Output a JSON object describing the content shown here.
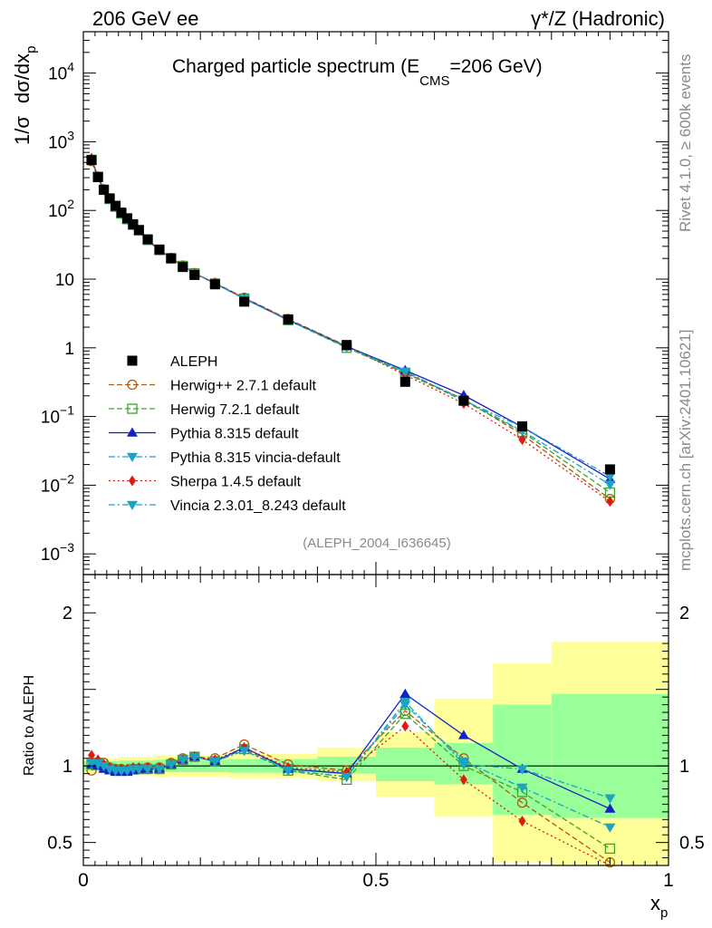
{
  "header": {
    "left": "206 GeV ee",
    "right": "γ*/Z (Hadronic)"
  },
  "side_labels": {
    "rivet": "Rivet 4.1.0, ≥ 600k events",
    "mcplots": "mcplots.cern.ch [arXiv:2401.10621]"
  },
  "chart_data": {
    "type": "line",
    "title_parts": {
      "main": "Charged particle spectrum (E",
      "sub": "CMS",
      "tail": "=206 GeV)"
    },
    "analysis_tag": "(ALEPH_2004_I636645)",
    "xlabel": "x",
    "xlabel_sub": "p",
    "xlim": [
      0,
      1
    ],
    "x_ticks": [
      "0",
      "0.5",
      "1"
    ],
    "top_panel": {
      "ylabel_parts": {
        "a": "1/σ",
        "b": "dσ/dx",
        "sub": "p"
      },
      "yscale": "log",
      "ylim": [
        0.0005,
        40000
      ],
      "y_ticks": [
        {
          "v": 0.001,
          "base": "10",
          "exp": "−3"
        },
        {
          "v": 0.01,
          "base": "10",
          "exp": "−2"
        },
        {
          "v": 0.1,
          "base": "10",
          "exp": "−1"
        },
        {
          "v": 1,
          "base": "1",
          "exp": ""
        },
        {
          "v": 10,
          "base": "10",
          "exp": ""
        },
        {
          "v": 100,
          "base": "10",
          "exp": "2"
        },
        {
          "v": 1000,
          "base": "10",
          "exp": "3"
        },
        {
          "v": 10000,
          "base": "10",
          "exp": "4"
        }
      ]
    },
    "ratio_panel": {
      "ylabel": "Ratio to ALEPH",
      "ylim": [
        0.35,
        2.25
      ],
      "y_ticks": [
        "0.5",
        "1",
        "2"
      ],
      "y_tick_values": [
        0.5,
        1,
        2
      ]
    },
    "x": [
      0.014,
      0.025,
      0.035,
      0.045,
      0.055,
      0.065,
      0.075,
      0.085,
      0.095,
      0.11,
      0.13,
      0.15,
      0.17,
      0.19,
      0.225,
      0.275,
      0.35,
      0.45,
      0.55,
      0.65,
      0.75,
      0.9
    ],
    "data": {
      "name": "ALEPH",
      "values": [
        540,
        305,
        200,
        150,
        117,
        93,
        77,
        63,
        52,
        38,
        27,
        20,
        15,
        11.5,
        8.4,
        4.7,
        2.6,
        1.1,
        0.32,
        0.17,
        0.072,
        0.017
      ]
    },
    "bands": [
      {
        "x0": 0.0,
        "x1": 0.06,
        "yellow": [
          0.95,
          1.05
        ],
        "green": [
          0.97,
          1.03
        ]
      },
      {
        "x0": 0.06,
        "x1": 0.12,
        "yellow": [
          0.94,
          1.06
        ],
        "green": [
          0.965,
          1.035
        ]
      },
      {
        "x0": 0.12,
        "x1": 0.2,
        "yellow": [
          0.93,
          1.07
        ],
        "green": [
          0.96,
          1.04
        ]
      },
      {
        "x0": 0.2,
        "x1": 0.25,
        "yellow": [
          0.93,
          1.07
        ],
        "green": [
          0.96,
          1.04
        ]
      },
      {
        "x0": 0.25,
        "x1": 0.3,
        "yellow": [
          0.92,
          1.08
        ],
        "green": [
          0.955,
          1.045
        ]
      },
      {
        "x0": 0.3,
        "x1": 0.4,
        "yellow": [
          0.92,
          1.08
        ],
        "green": [
          0.955,
          1.045
        ]
      },
      {
        "x0": 0.4,
        "x1": 0.5,
        "yellow": [
          0.9,
          1.12
        ],
        "green": [
          0.95,
          1.06
        ]
      },
      {
        "x0": 0.5,
        "x1": 0.6,
        "yellow": [
          0.8,
          1.22
        ],
        "green": [
          0.9,
          1.12
        ]
      },
      {
        "x0": 0.6,
        "x1": 0.7,
        "yellow": [
          0.67,
          1.44
        ],
        "green": [
          0.88,
          1.15
        ]
      },
      {
        "x0": 0.7,
        "x1": 0.8,
        "yellow": [
          0.37,
          1.67
        ],
        "green": [
          0.68,
          1.4
        ]
      },
      {
        "x0": 0.8,
        "x1": 1.0,
        "yellow": [
          0.35,
          1.81
        ],
        "green": [
          0.66,
          1.47
        ]
      }
    ],
    "series": [
      {
        "name": "Herwig++ 2.7.1 default",
        "color": "#b15a0e",
        "marker": "circle-open",
        "dash": "6,3",
        "ratios": [
          0.97,
          1.01,
          1.02,
          0.99,
          0.98,
          0.98,
          0.97,
          0.98,
          0.98,
          0.99,
          0.99,
          1.02,
          1.05,
          1.06,
          1.05,
          1.14,
          1.01,
          0.97,
          1.36,
          1.05,
          0.76,
          0.37
        ]
      },
      {
        "name": "Herwig 7.2.1 default",
        "color": "#3aa52a",
        "marker": "square-open",
        "dash": "6,3",
        "ratios": [
          1.01,
          1.02,
          1.0,
          0.98,
          0.97,
          0.97,
          0.97,
          0.98,
          0.98,
          0.98,
          0.98,
          1.01,
          1.04,
          1.06,
          1.03,
          1.11,
          0.97,
          0.91,
          1.34,
          1.0,
          0.83,
          0.46
        ]
      },
      {
        "name": "Pythia 8.315 default",
        "color": "#1322c8",
        "marker": "triangle-up",
        "dash": "",
        "ratios": [
          1.01,
          1.0,
          0.98,
          0.97,
          0.96,
          0.96,
          0.96,
          0.97,
          0.98,
          0.98,
          0.98,
          1.01,
          1.04,
          1.06,
          1.03,
          1.12,
          0.98,
          0.95,
          1.47,
          1.2,
          0.98,
          0.72
        ]
      },
      {
        "name": "Pythia 8.315 vincia-default",
        "color": "#1aa3c2",
        "marker": "triangle-down",
        "dash": "7,3,2,3",
        "ratios": [
          1.02,
          1.01,
          1.0,
          0.98,
          0.97,
          0.97,
          0.97,
          0.98,
          0.98,
          0.98,
          0.98,
          1.01,
          1.04,
          1.06,
          1.03,
          1.1,
          0.97,
          0.93,
          1.42,
          1.01,
          0.98,
          0.79
        ]
      },
      {
        "name": "Sherpa 1.4.5 default",
        "color": "#e21a0c",
        "marker": "diamond",
        "dash": "2,3",
        "ratios": [
          1.07,
          1.04,
          1.01,
          0.99,
          0.98,
          0.98,
          0.98,
          0.99,
          0.99,
          0.99,
          0.99,
          1.01,
          1.04,
          1.06,
          1.04,
          1.12,
          0.99,
          0.96,
          1.26,
          0.91,
          0.64,
          0.34
        ]
      },
      {
        "name": "Vincia 2.3.01_8.243 default",
        "color": "#1aa3c2",
        "marker": "triangle-down",
        "dash": "7,3,2,3",
        "ratios": [
          1.02,
          1.02,
          1.0,
          0.98,
          0.97,
          0.97,
          0.97,
          0.98,
          0.98,
          0.98,
          0.98,
          1.01,
          1.04,
          1.06,
          1.03,
          1.1,
          0.97,
          0.93,
          1.4,
          1.03,
          0.86,
          0.6
        ]
      }
    ]
  }
}
